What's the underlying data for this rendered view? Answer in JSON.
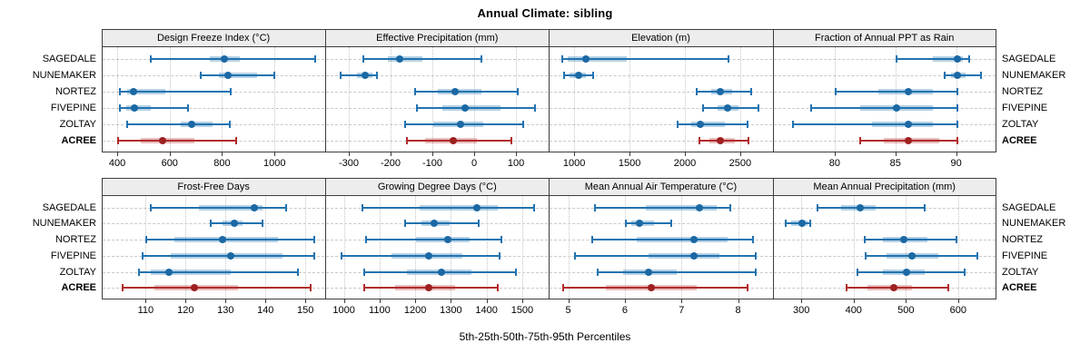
{
  "title": "Annual Climate: sibling",
  "caption": "5th-25th-50th-75th-95th Percentiles",
  "colors": {
    "site_line": "#2273b0",
    "site_dot": "#1b68a4",
    "site_band": "rgba(34,115,176,0.33)",
    "highlight_line": "#b22b2b",
    "highlight_dot": "#9e2020",
    "highlight_band": "rgba(178,43,43,0.30)",
    "strip_background": "#ededed",
    "panel_border": "#3c3c3c",
    "gridline": "#c9c9c9"
  },
  "chart_data": {
    "type": "dot-whisker percentile trellis (5th-25th-50th-75th-95th)",
    "title": "Annual Climate: sibling",
    "caption": "5th-25th-50th-75th-95th Percentiles",
    "legend_position": "none",
    "grid": true,
    "percentiles": [
      5,
      25,
      50,
      75,
      95
    ],
    "highlight_site": "ACREE",
    "sites": [
      {
        "name": "SAGEDALE",
        "highlight": false
      },
      {
        "name": "NUNEMAKER",
        "highlight": false
      },
      {
        "name": "NORTEZ",
        "highlight": false
      },
      {
        "name": "FIVEPINE",
        "highlight": false
      },
      {
        "name": "ZOLTAY",
        "highlight": false
      },
      {
        "name": "ACREE",
        "highlight": true
      }
    ],
    "panels": [
      {
        "title": "Design Freeze Index (°C)",
        "xlim": [
          341,
          1194
        ],
        "ticks": [
          400,
          600,
          800,
          1000
        ],
        "series": [
          [
            525,
            750,
            805,
            865,
            1150
          ],
          [
            715,
            785,
            820,
            930,
            995
          ],
          [
            407,
            435,
            458,
            580,
            830
          ],
          [
            408,
            430,
            462,
            525,
            668
          ],
          [
            435,
            640,
            680,
            760,
            825
          ],
          [
            400,
            485,
            570,
            690,
            850
          ]
        ]
      },
      {
        "title": "Effective Precipitation (mm)",
        "xlim": [
          -356,
          179
        ],
        "ticks": [
          -300,
          -200,
          -100,
          0,
          100
        ],
        "series": [
          [
            -267,
            -208,
            -180,
            -125,
            15
          ],
          [
            -322,
            -283,
            -262,
            -245,
            -235
          ],
          [
            -143,
            -90,
            -47,
            15,
            102
          ],
          [
            -139,
            -78,
            -25,
            60,
            143
          ],
          [
            -167,
            -100,
            -34,
            20,
            116
          ],
          [
            -164,
            -120,
            -53,
            5,
            87
          ]
        ]
      },
      {
        "title": "Elevation (m)",
        "xlim": [
          772,
          2793
        ],
        "ticks": [
          1000,
          1500,
          2000,
          2500
        ],
        "series": [
          [
            885,
            930,
            1095,
            1465,
            2390
          ],
          [
            900,
            950,
            1035,
            1100,
            1160
          ],
          [
            2100,
            2230,
            2310,
            2420,
            2590
          ],
          [
            2160,
            2290,
            2380,
            2480,
            2660
          ],
          [
            1930,
            2050,
            2135,
            2350,
            2560
          ],
          [
            2120,
            2210,
            2315,
            2440,
            2570
          ]
        ]
      },
      {
        "title": "Fraction of Annual PPT as Rain",
        "xlim": [
          74.9,
          93.3
        ],
        "ticks": [
          80,
          85,
          90
        ],
        "series": [
          [
            85,
            88,
            90,
            90.5,
            91
          ],
          [
            89,
            89.5,
            90,
            90.7,
            92
          ],
          [
            80,
            83.5,
            86,
            88,
            90
          ],
          [
            78,
            82,
            85,
            88,
            90
          ],
          [
            76.5,
            83,
            86,
            88,
            90
          ],
          [
            82,
            84,
            86,
            88.5,
            90
          ]
        ]
      },
      {
        "title": "Frost-Free Days",
        "xlim": [
          99,
          155
        ],
        "ticks": [
          110,
          120,
          130,
          140,
          150
        ],
        "series": [
          [
            111,
            123,
            137,
            139,
            145
          ],
          [
            126,
            129,
            132,
            134,
            139
          ],
          [
            110,
            117,
            129,
            143,
            152
          ],
          [
            109,
            116,
            131,
            144,
            152
          ],
          [
            108,
            111,
            115.5,
            131,
            148
          ],
          [
            104,
            112,
            122,
            133,
            151
          ]
        ]
      },
      {
        "title": "Growing Degree Days (°C)",
        "xlim": [
          948,
          1575
        ],
        "ticks": [
          1000,
          1100,
          1200,
          1300,
          1400,
          1500
        ],
        "series": [
          [
            1050,
            1210,
            1370,
            1430,
            1530
          ],
          [
            1170,
            1215,
            1250,
            1295,
            1375
          ],
          [
            1060,
            1200,
            1290,
            1350,
            1440
          ],
          [
            990,
            1130,
            1235,
            1330,
            1435
          ],
          [
            1055,
            1175,
            1270,
            1355,
            1480
          ],
          [
            1055,
            1140,
            1235,
            1310,
            1430
          ]
        ]
      },
      {
        "title": "Mean Annual Air Temperature (°C)",
        "xlim": [
          4.66,
          8.61
        ],
        "ticks": [
          5,
          6,
          7,
          8
        ],
        "series": [
          [
            5.45,
            6.35,
            7.3,
            7.6,
            7.85
          ],
          [
            6.0,
            6.1,
            6.25,
            6.5,
            6.8
          ],
          [
            5.4,
            6.2,
            7.2,
            7.8,
            8.25
          ],
          [
            5.1,
            6.4,
            7.2,
            7.65,
            8.3
          ],
          [
            5.5,
            5.95,
            6.4,
            6.9,
            8.3
          ],
          [
            4.9,
            5.65,
            6.45,
            7.25,
            8.15
          ]
        ]
      },
      {
        "title": "Mean Annual Precipitation (mm)",
        "xlim": [
          245,
          673
        ],
        "ticks": [
          300,
          400,
          500,
          600
        ],
        "series": [
          [
            330,
            375,
            410,
            440,
            535
          ],
          [
            268,
            278,
            300,
            310,
            315
          ],
          [
            420,
            455,
            495,
            540,
            595
          ],
          [
            422,
            462,
            510,
            560,
            635
          ],
          [
            405,
            455,
            500,
            535,
            610
          ],
          [
            385,
            425,
            475,
            510,
            580
          ]
        ]
      }
    ]
  }
}
